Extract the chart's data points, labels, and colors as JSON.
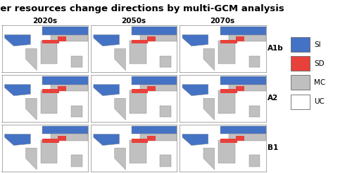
{
  "title": "Water resources change directions by multi-GCM analysis",
  "col_labels": [
    "2020s",
    "2050s",
    "2070s"
  ],
  "row_labels": [
    "A1b",
    "A2",
    "B1"
  ],
  "legend_labels": [
    "SI",
    "SD",
    "MC",
    "UC"
  ],
  "legend_colors": [
    "#4472C4",
    "#E8403A",
    "#BFBFBF",
    "#FFFFFF"
  ],
  "color_SI": "#4472C4",
  "color_SD": "#E8403A",
  "color_MC": "#C0C0C0",
  "color_UC": "#FFFFFF",
  "color_land_bg": "#DDDDDD",
  "color_ocean": "#FFFFFF",
  "color_border": "#888888",
  "color_grid": "#CCCCCC",
  "bg_color": "#FFFFFF",
  "title_fontsize": 9.5,
  "label_fontsize": 7.5,
  "legend_fontsize": 7.5
}
